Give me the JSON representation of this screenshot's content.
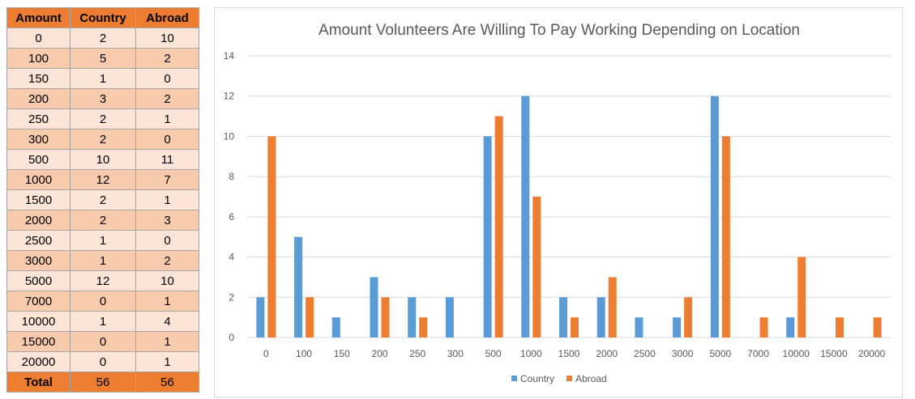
{
  "table": {
    "headers": [
      "Amount",
      "Country",
      "Abroad"
    ],
    "rows": [
      [
        "0",
        "2",
        "10"
      ],
      [
        "100",
        "5",
        "2"
      ],
      [
        "150",
        "1",
        "0"
      ],
      [
        "200",
        "3",
        "2"
      ],
      [
        "250",
        "2",
        "1"
      ],
      [
        "300",
        "2",
        "0"
      ],
      [
        "500",
        "10",
        "11"
      ],
      [
        "1000",
        "12",
        "7"
      ],
      [
        "1500",
        "2",
        "1"
      ],
      [
        "2000",
        "2",
        "3"
      ],
      [
        "2500",
        "1",
        "0"
      ],
      [
        "3000",
        "1",
        "2"
      ],
      [
        "5000",
        "12",
        "10"
      ],
      [
        "7000",
        "0",
        "1"
      ],
      [
        "10000",
        "1",
        "4"
      ],
      [
        "15000",
        "0",
        "1"
      ],
      [
        "20000",
        "0",
        "1"
      ]
    ],
    "total": [
      "Total",
      "56",
      "56"
    ]
  },
  "chart_data": {
    "type": "bar",
    "title": "Amount Volunteers Are Willing To Pay Working Depending on Location",
    "xlabel": "",
    "ylabel": "",
    "categories": [
      "0",
      "100",
      "150",
      "200",
      "250",
      "300",
      "500",
      "1000",
      "1500",
      "2000",
      "2500",
      "3000",
      "5000",
      "7000",
      "10000",
      "15000",
      "20000"
    ],
    "series": [
      {
        "name": "Country",
        "color": "#5b9bd5",
        "values": [
          2,
          5,
          1,
          3,
          2,
          2,
          10,
          12,
          2,
          2,
          1,
          1,
          12,
          0,
          1,
          0,
          0
        ]
      },
      {
        "name": "Abroad",
        "color": "#ed7d31",
        "values": [
          10,
          2,
          0,
          2,
          1,
          0,
          11,
          7,
          1,
          3,
          0,
          2,
          10,
          1,
          4,
          1,
          1
        ]
      }
    ],
    "ylim": [
      0,
      14
    ],
    "yticks": [
      0,
      2,
      4,
      6,
      8,
      10,
      12,
      14
    ],
    "grid": true,
    "legend": "bottom"
  }
}
